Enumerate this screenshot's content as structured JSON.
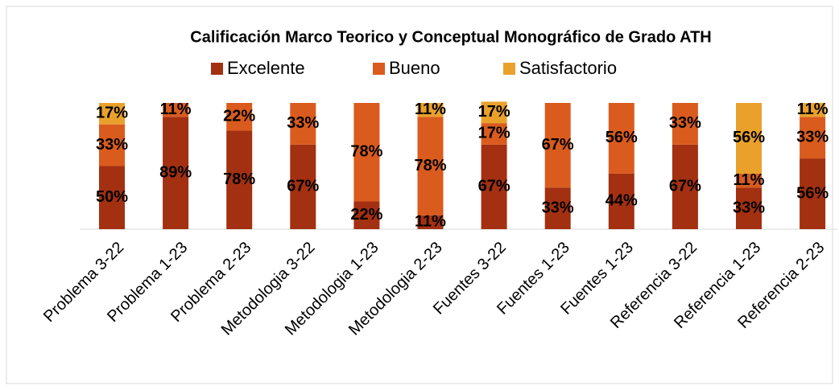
{
  "chart_data": {
    "type": "stacked-bar",
    "title": "Calificación Marco Teorico y Conceptual Monográfico de Grado ATH",
    "categories": [
      "Problema 3-22",
      "Problema 1-23",
      "Problema 2-23",
      "Metodologia 3-22",
      "Metodologia 1-23",
      "Metodologia 2-23",
      "Fuentes 3-22",
      "Fuentes 1-23",
      "Fuentes 1-23",
      "Referencia 3-22",
      "Referencia 1-23",
      "Referencia 2-23"
    ],
    "series": [
      {
        "name": "Excelente",
        "color": "#a33011",
        "values": [
          50,
          89,
          78,
          67,
          22,
          11,
          67,
          33,
          44,
          67,
          33,
          56
        ],
        "value_labels": [
          "50%",
          "89%",
          "78%",
          "67%",
          "22%",
          "11%",
          "67%",
          "33%",
          "44%",
          "67%",
          "33%",
          "56%"
        ]
      },
      {
        "name": "Bueno",
        "color": "#da5b1e",
        "values": [
          33,
          11,
          22,
          33,
          78,
          78,
          17,
          67,
          56,
          33,
          11,
          33
        ],
        "value_labels": [
          "33%",
          "11%",
          "22%",
          "33%",
          "78%",
          "78%",
          "17%",
          "67%",
          "56%",
          "33%",
          "11%",
          "33%"
        ]
      },
      {
        "name": "Satisfactorio",
        "color": "#e9a12b",
        "values": [
          17,
          null,
          null,
          null,
          null,
          11,
          17,
          null,
          null,
          null,
          56,
          11
        ],
        "value_labels": [
          "17%",
          null,
          null,
          null,
          null,
          "11%",
          "17%",
          null,
          null,
          null,
          "56%",
          "11%"
        ]
      }
    ],
    "ylim": [
      0,
      100
    ],
    "legend": "top"
  }
}
